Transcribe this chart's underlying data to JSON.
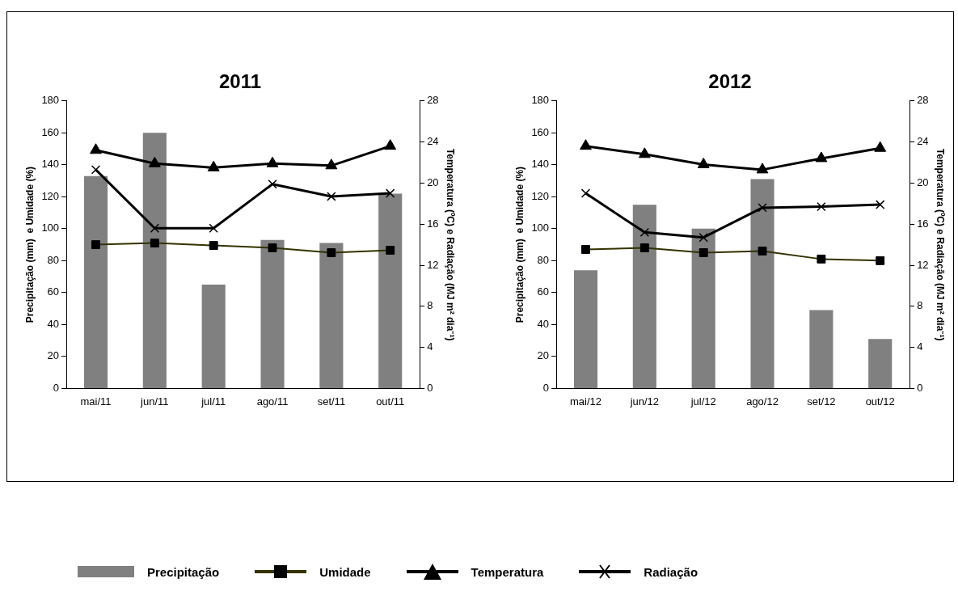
{
  "chart_data": [
    {
      "type": "bar",
      "title": "2011",
      "categories": [
        "mai/11",
        "jun/11",
        "jul/11",
        "ago/11",
        "set/11",
        "out/11"
      ],
      "ylabel": "Precipitação (mm)  e Umidade (%)",
      "y2label": "Temperatura (ºC) e Radiação (MJ m² dia⁻¹)",
      "ylim": [
        0,
        180
      ],
      "yticks": [
        0,
        20,
        40,
        60,
        80,
        100,
        120,
        140,
        160,
        180
      ],
      "y2lim": [
        0,
        28
      ],
      "y2ticks": [
        0,
        4,
        8,
        12,
        16,
        20,
        24,
        28
      ],
      "grid": false,
      "legend": "bottom",
      "series": [
        {
          "name": "Precipitação",
          "color": "#808080",
          "values": [
            133,
            160,
            65,
            93,
            91,
            122
          ]
        },
        {
          "name": "Umidade",
          "type": "line",
          "marker": "square",
          "color": "#333300",
          "values": [
            90,
            91,
            89.5,
            88,
            85,
            86.5
          ]
        },
        {
          "name": "Temperatura",
          "type": "line",
          "marker": "triangle",
          "axis": "y2",
          "color": "#000000",
          "values": [
            23.2,
            21.9,
            21.5,
            21.9,
            21.7,
            23.6
          ]
        },
        {
          "name": "Radiação",
          "type": "line",
          "marker": "cross",
          "axis": "y2",
          "color": "#000000",
          "values": [
            21.3,
            15.6,
            15.6,
            19.9,
            18.7,
            19.0
          ]
        }
      ]
    },
    {
      "type": "bar",
      "title": "2012",
      "categories": [
        "mai/12",
        "jun/12",
        "jul/12",
        "ago/12",
        "set/12",
        "out/12"
      ],
      "ylabel": "Precipitação (mm)  e Umidade (%)",
      "y2label": "Temperatura (ºC) e Radiação (MJ m² dia⁻¹)",
      "ylim": [
        0,
        180
      ],
      "yticks": [
        0,
        20,
        40,
        60,
        80,
        100,
        120,
        140,
        160,
        180
      ],
      "y2lim": [
        0,
        28
      ],
      "y2ticks": [
        0,
        4,
        8,
        12,
        16,
        20,
        24,
        28
      ],
      "grid": false,
      "series": [
        {
          "color": "#808080",
          "values": [
            74,
            115,
            100,
            131,
            49,
            31
          ]
        },
        {
          "type": "line",
          "marker": "square",
          "color": "#333300",
          "values": [
            87,
            88,
            85,
            86,
            81,
            80
          ]
        },
        {
          "type": "line",
          "marker": "triangle",
          "axis": "y2",
          "color": "#000000",
          "values": [
            23.6,
            22.8,
            21.8,
            21.3,
            22.4,
            23.4
          ]
        },
        {
          "type": "line",
          "marker": "cross",
          "axis": "y2",
          "color": "#000000",
          "values": [
            19.0,
            15.2,
            14.7,
            17.6,
            17.7,
            17.9
          ]
        }
      ]
    }
  ]
}
